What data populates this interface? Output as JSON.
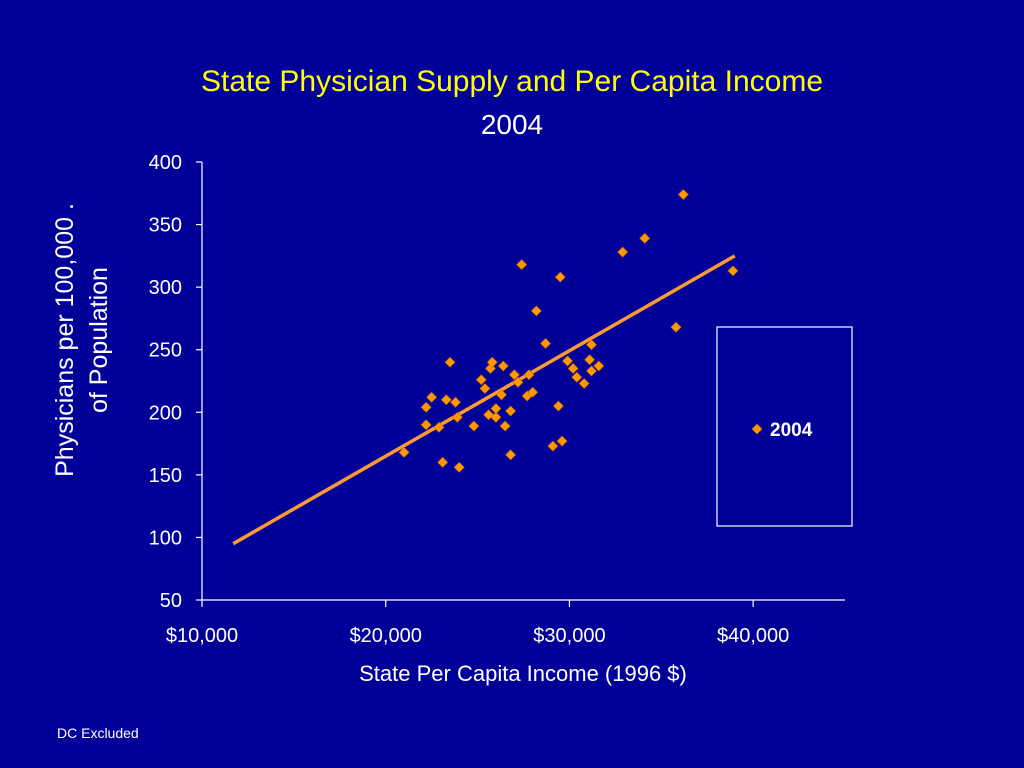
{
  "slide": {
    "title": "State Physician Supply and Per Capita Income",
    "subtitle": "2004",
    "footnote": "DC Excluded"
  },
  "colors": {
    "background": "#000099",
    "title": "#ffff00",
    "marker": "#ff9900",
    "trendline": "#ff9933",
    "text": "#ffffff"
  },
  "chart_data": {
    "type": "scatter",
    "title": "State Physician Supply and Per Capita Income",
    "subtitle": "2004",
    "xlabel": "State Per Capita Income (1996 $)",
    "ylabel_lines": [
      "Physicians per 100,000  .",
      "of  Population"
    ],
    "xlim": [
      10000,
      45000
    ],
    "ylim": [
      50,
      400
    ],
    "x_ticks": [
      10000,
      20000,
      30000,
      40000
    ],
    "x_tick_labels": [
      "$10,000",
      "$20,000",
      "$30,000",
      "$40,000"
    ],
    "y_ticks": [
      50,
      100,
      150,
      200,
      250,
      300,
      350,
      400
    ],
    "y_tick_labels": [
      "50",
      "100",
      "150",
      "200",
      "250",
      "300",
      "350",
      "400"
    ],
    "grid": false,
    "legend": {
      "position": "right",
      "entries": [
        "2004"
      ]
    },
    "series": [
      {
        "name": "2004",
        "marker": "diamond",
        "points": [
          [
            21000,
            168
          ],
          [
            22200,
            190
          ],
          [
            22200,
            204
          ],
          [
            22500,
            212
          ],
          [
            22900,
            188
          ],
          [
            23100,
            160
          ],
          [
            23300,
            210
          ],
          [
            23500,
            240
          ],
          [
            23800,
            208
          ],
          [
            23900,
            196
          ],
          [
            24000,
            156
          ],
          [
            24800,
            189
          ],
          [
            25200,
            226
          ],
          [
            25400,
            219
          ],
          [
            25600,
            198
          ],
          [
            25700,
            235
          ],
          [
            25800,
            240
          ],
          [
            26000,
            196
          ],
          [
            26000,
            203
          ],
          [
            26300,
            214
          ],
          [
            26400,
            237
          ],
          [
            26500,
            189
          ],
          [
            26800,
            201
          ],
          [
            26800,
            166
          ],
          [
            27000,
            230
          ],
          [
            27200,
            224
          ],
          [
            27400,
            318
          ],
          [
            27700,
            213
          ],
          [
            27800,
            230
          ],
          [
            28000,
            216
          ],
          [
            28200,
            281
          ],
          [
            28700,
            255
          ],
          [
            29100,
            173
          ],
          [
            29400,
            205
          ],
          [
            29500,
            308
          ],
          [
            29600,
            177
          ],
          [
            29900,
            241
          ],
          [
            30200,
            235
          ],
          [
            30400,
            228
          ],
          [
            30800,
            223
          ],
          [
            31100,
            242
          ],
          [
            31200,
            254
          ],
          [
            31200,
            233
          ],
          [
            31600,
            237
          ],
          [
            32900,
            328
          ],
          [
            34100,
            339
          ],
          [
            35800,
            268
          ],
          [
            36200,
            374
          ],
          [
            38900,
            313
          ]
        ]
      }
    ],
    "trendline": {
      "type": "linear",
      "x": [
        11700,
        39000
      ],
      "y": [
        95,
        325
      ]
    }
  }
}
